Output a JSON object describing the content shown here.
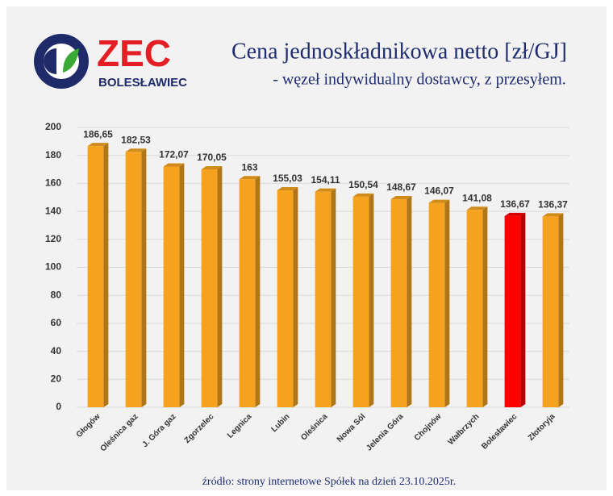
{
  "logo": {
    "name": "ZEC",
    "city": "BOLESŁAWIEC"
  },
  "footer": "źródło: strony internetowe Spółek na dzień 23.10.2025r.",
  "chart_data": {
    "type": "bar",
    "title": "Cena jednoskładnikowa netto [zł/GJ]",
    "subtitle": "- węzeł indywidualny dostawcy, z przesyłem.",
    "categories": [
      "Głogów",
      "Oleśnica gaz",
      "J. Góra gaz",
      "Zgorzelec",
      "Legnica",
      "Lubin",
      "Oleśnica",
      "Nowa Sól",
      "Jelenia Góra",
      "Chojnów",
      "Wałbrzych",
      "Bolesławiec",
      "Złotoryja"
    ],
    "values": [
      186.65,
      182.53,
      172.07,
      170.05,
      163,
      155.03,
      154.11,
      150.54,
      148.67,
      146.07,
      141.08,
      136.67,
      136.37
    ],
    "value_labels": [
      "186,65",
      "182,53",
      "172,07",
      "170,05",
      "163",
      "155,03",
      "154,11",
      "150,54",
      "148,67",
      "146,07",
      "141,08",
      "136,67",
      "136,37"
    ],
    "colors": [
      "#f5a31f",
      "#f5a31f",
      "#f5a31f",
      "#f5a31f",
      "#f5a31f",
      "#f5a31f",
      "#f5a31f",
      "#f5a31f",
      "#f5a31f",
      "#f5a31f",
      "#f5a31f",
      "#ff0000",
      "#f5a31f"
    ],
    "ylim": [
      0,
      200
    ],
    "yticks": [
      0,
      20,
      40,
      60,
      80,
      100,
      120,
      140,
      160,
      180,
      200
    ],
    "grid": true
  }
}
